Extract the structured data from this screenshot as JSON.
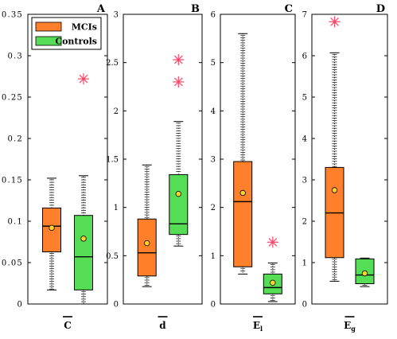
{
  "chart_data": [
    {
      "type": "box",
      "panel_label": "A",
      "xlabel": "C",
      "ylim": [
        0,
        0.35
      ],
      "yticks": [
        "0",
        "0.05",
        "0.1",
        "0.15",
        "0.2",
        "0.25",
        "0.3",
        "0.35"
      ],
      "legend": {
        "placement": "top-left",
        "entries": [
          "MCIs",
          "Controls"
        ]
      },
      "series": [
        {
          "name": "MCIs",
          "whisker_low": 0.017,
          "q1": 0.063,
          "median": 0.094,
          "q3": 0.116,
          "whisker_high": 0.152,
          "mean": 0.092,
          "outliers": []
        },
        {
          "name": "Controls",
          "whisker_low": 0.0,
          "q1": 0.017,
          "median": 0.057,
          "q3": 0.107,
          "whisker_high": 0.155,
          "mean": 0.079,
          "outliers": [
            0.272
          ]
        }
      ]
    },
    {
      "type": "box",
      "panel_label": "B",
      "xlabel": "d",
      "ylim": [
        0,
        3
      ],
      "yticks": [
        "0",
        "0.5",
        "1",
        "1.5",
        "2",
        "2.5",
        "3"
      ],
      "series": [
        {
          "name": "MCIs",
          "whisker_low": 0.18,
          "q1": 0.29,
          "median": 0.53,
          "q3": 0.88,
          "whisker_high": 1.44,
          "mean": 0.63,
          "outliers": []
        },
        {
          "name": "Controls",
          "whisker_low": 0.6,
          "q1": 0.72,
          "median": 0.83,
          "q3": 1.34,
          "whisker_high": 1.89,
          "mean": 1.14,
          "outliers": [
            2.3,
            2.53
          ]
        }
      ]
    },
    {
      "type": "box",
      "panel_label": "C",
      "xlabel": "E",
      "xlabel_sub": "l",
      "ylim": [
        0,
        6
      ],
      "yticks": [
        "0",
        "1",
        "2",
        "3",
        "4",
        "5",
        "6"
      ],
      "series": [
        {
          "name": "MCIs",
          "whisker_low": 0.62,
          "q1": 0.77,
          "median": 2.12,
          "q3": 2.95,
          "whisker_high": 5.6,
          "mean": 2.3,
          "outliers": []
        },
        {
          "name": "Controls",
          "whisker_low": 0.05,
          "q1": 0.21,
          "median": 0.34,
          "q3": 0.62,
          "whisker_high": 0.85,
          "mean": 0.44,
          "outliers": [
            1.28
          ]
        }
      ]
    },
    {
      "type": "box",
      "panel_label": "D",
      "xlabel": "E",
      "xlabel_sub": "g",
      "ylim": [
        0,
        7
      ],
      "yticks": [
        "0",
        "1",
        "2",
        "3",
        "4",
        "5",
        "6",
        "7"
      ],
      "series": [
        {
          "name": "MCIs",
          "whisker_low": 0.55,
          "q1": 1.12,
          "median": 2.2,
          "q3": 3.3,
          "whisker_high": 6.07,
          "mean": 2.75,
          "outliers": [
            6.82
          ]
        },
        {
          "name": "Controls",
          "whisker_low": 0.42,
          "q1": 0.49,
          "median": 0.7,
          "q3": 1.09,
          "whisker_high": 1.11,
          "mean": 0.74,
          "outliers": []
        }
      ]
    }
  ],
  "colors": {
    "mci": "#ff7f2a",
    "controls": "#55dd55",
    "outlier": "#ff4466",
    "mean_marker": "#ffd42a",
    "axis": "#000000"
  }
}
